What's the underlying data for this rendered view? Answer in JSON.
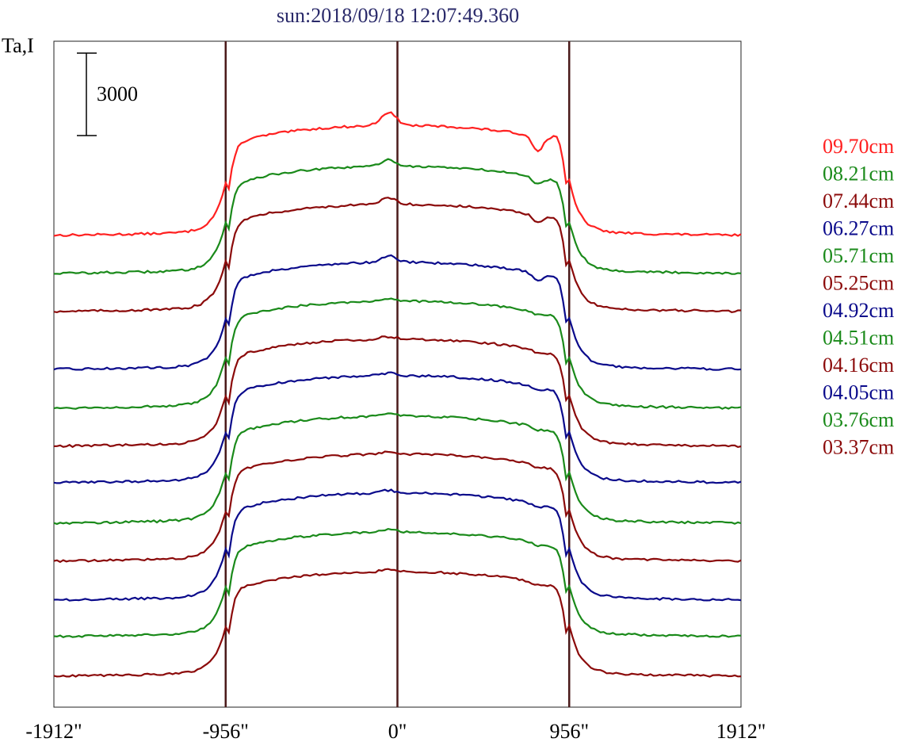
{
  "chart_data": {
    "type": "line",
    "title": "sun:2018/09/18 12:07:49.360",
    "ylabel": "Ta,I",
    "scale_bar": {
      "label": "3000",
      "value": 3000
    },
    "xlim": [
      -1912,
      1912
    ],
    "x_ticks": [
      {
        "value": -1912,
        "label": "-1912\""
      },
      {
        "value": -956,
        "label": "-956\""
      },
      {
        "value": 0,
        "label": "0\""
      },
      {
        "value": 956,
        "label": "956\""
      },
      {
        "value": 1912,
        "label": "1912\""
      }
    ],
    "vertical_lines": [
      -956,
      0,
      956
    ],
    "grid": false,
    "legend_position": "right",
    "series": [
      {
        "name": "09.70cm",
        "color": "#ff2020",
        "baseline": 1500,
        "disk": 5500,
        "feature": "strong"
      },
      {
        "name": "08.21cm",
        "color": "#1a8a1a",
        "baseline": 800,
        "disk": 4700,
        "feature": "medium"
      },
      {
        "name": "07.44cm",
        "color": "#8b0a0a",
        "baseline": 1000,
        "disk": 4900,
        "feature": "medium"
      },
      {
        "name": "06.27cm",
        "color": "#0a0a8b",
        "baseline": 800,
        "disk": 4700,
        "feature": "medium"
      },
      {
        "name": "05.71cm",
        "color": "#1a8a1a",
        "baseline": 800,
        "disk": 4700,
        "feature": "weak"
      },
      {
        "name": "05.25cm",
        "color": "#8b0a0a",
        "baseline": 800,
        "disk": 4700,
        "feature": "weak"
      },
      {
        "name": "04.92cm",
        "color": "#0a0a8b",
        "baseline": 800,
        "disk": 4700,
        "feature": "weak"
      },
      {
        "name": "04.51cm",
        "color": "#1a8a1a",
        "baseline": 800,
        "disk": 4700,
        "feature": "weak"
      },
      {
        "name": "04.16cm",
        "color": "#8b0a0a",
        "baseline": 800,
        "disk": 4700,
        "feature": "weak"
      },
      {
        "name": "04.05cm",
        "color": "#0a0a8b",
        "baseline": 800,
        "disk": 4700,
        "feature": "weak"
      },
      {
        "name": "03.76cm",
        "color": "#1a8a1a",
        "baseline": 800,
        "disk": 4600,
        "feature": "weak"
      },
      {
        "name": "03.37cm",
        "color": "#8b0a0a",
        "baseline": 800,
        "disk": 4600,
        "feature": "weak"
      }
    ]
  }
}
